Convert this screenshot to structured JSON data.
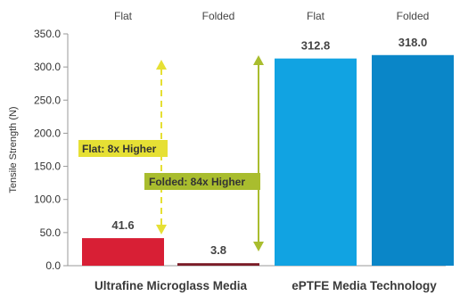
{
  "chart_data": {
    "type": "bar",
    "ylabel": "Tensile Strength (N)",
    "ylim": [
      0,
      350
    ],
    "yticks": [
      "0.0",
      "50.0",
      "100.0",
      "150.0",
      "200.0",
      "250.0",
      "300.0",
      "350.0"
    ],
    "grid": false,
    "conditions": [
      "Flat",
      "Folded",
      "Flat",
      "Folded"
    ],
    "groups": [
      "Ultrafine Microglass Media",
      "ePTFE Media Technology"
    ],
    "bars": [
      {
        "group": "Ultrafine Microglass Media",
        "condition": "Flat",
        "value": 41.6,
        "label": "41.6",
        "color": "#d81f35"
      },
      {
        "group": "Ultrafine Microglass Media",
        "condition": "Folded",
        "value": 3.8,
        "label": "3.8",
        "color": "#7b1b26"
      },
      {
        "group": "ePTFE Media Technology",
        "condition": "Flat",
        "value": 312.8,
        "label": "312.8",
        "color": "#11a3e2"
      },
      {
        "group": "ePTFE Media Technology",
        "condition": "Folded",
        "value": 318.0,
        "label": "318.0",
        "color": "#0a86c8"
      }
    ],
    "annotations": [
      {
        "text": "Flat: 8x Higher",
        "style": "dashed",
        "color": "#e6e034"
      },
      {
        "text": "Folded: 84x Higher",
        "style": "solid",
        "color": "#a9bd2e"
      }
    ]
  }
}
